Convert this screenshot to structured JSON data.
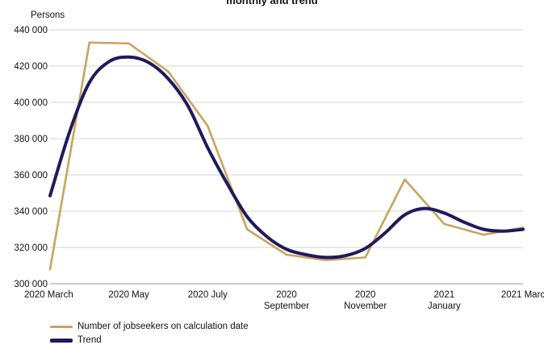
{
  "chart_data": {
    "type": "line",
    "title": "monthly and trend",
    "ylabel": "Persons",
    "xlabel": "",
    "ylim": [
      300000,
      440000
    ],
    "yticks": [
      300000,
      320000,
      340000,
      360000,
      380000,
      400000,
      420000,
      440000
    ],
    "ytick_labels": [
      "300 000",
      "320 000",
      "340 000",
      "360 000",
      "380 000",
      "400 000",
      "420 000",
      "440 000"
    ],
    "xticks": [
      {
        "pos": 0,
        "label": "2020 March"
      },
      {
        "pos": 2,
        "label": "2020 May"
      },
      {
        "pos": 4,
        "label": "2020 July"
      },
      {
        "pos": 6,
        "label": "2020\nSeptember"
      },
      {
        "pos": 8,
        "label": "2020\nNovember"
      },
      {
        "pos": 10,
        "label": "2021\nJanuary"
      },
      {
        "pos": 12,
        "label": "2021 Marc"
      }
    ],
    "grid": true,
    "legend_position": "bottom-left",
    "series": [
      {
        "name": "Number of jobseekers on calculation date",
        "color": "#c9a45c",
        "style": "thin",
        "x": [
          0,
          1,
          2,
          3,
          4,
          5,
          6,
          7,
          8,
          9,
          10,
          11,
          12
        ],
        "values": [
          308000,
          433000,
          432500,
          417000,
          387000,
          330000,
          316000,
          313000,
          314500,
          357500,
          333000,
          327000,
          331000
        ]
      },
      {
        "name": "Trend",
        "color": "#1f1a5e",
        "style": "thick",
        "x": [
          0,
          0.5,
          1,
          1.5,
          2,
          2.5,
          3,
          3.5,
          4,
          4.5,
          5,
          5.5,
          6,
          6.5,
          7,
          7.5,
          8,
          8.5,
          9,
          9.5,
          10,
          10.5,
          11,
          11.5,
          12
        ],
        "values": [
          348500,
          384000,
          411000,
          422500,
          425000,
          422000,
          413000,
          398000,
          375000,
          355000,
          337000,
          326000,
          319000,
          316000,
          314500,
          315500,
          319500,
          328000,
          338000,
          341500,
          339000,
          334000,
          330000,
          329000,
          330000
        ]
      }
    ]
  }
}
